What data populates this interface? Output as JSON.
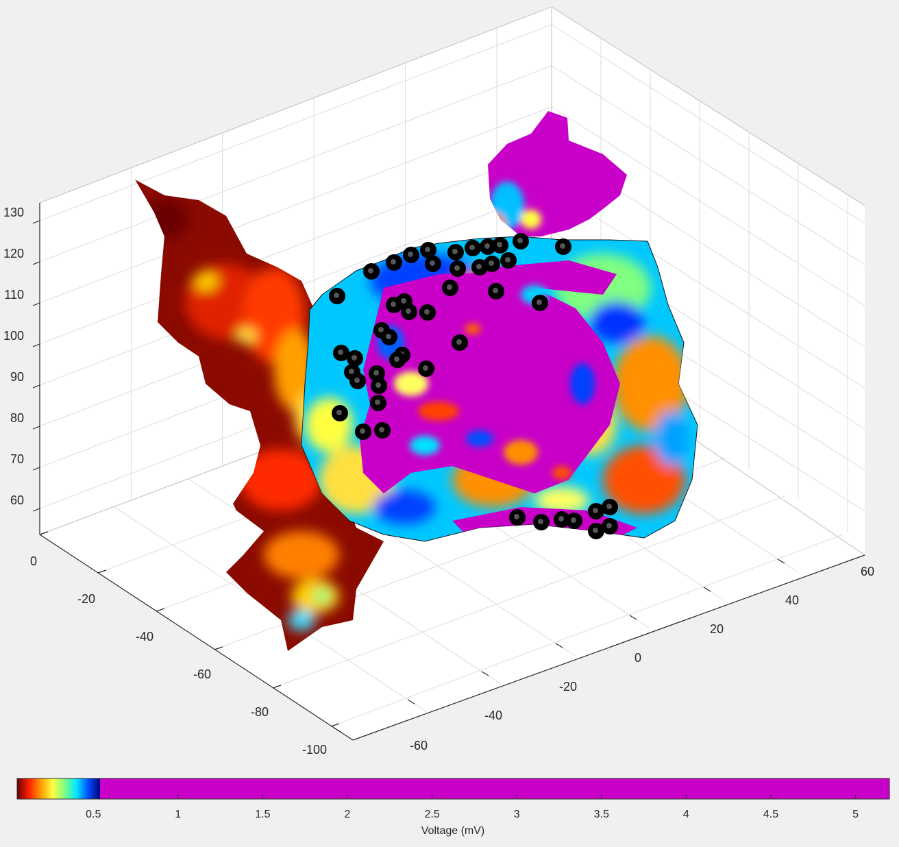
{
  "chart_data": {
    "type": "3d-surface",
    "z_axis": {
      "ticks": [
        60,
        70,
        80,
        90,
        100,
        110,
        120,
        130
      ]
    },
    "y_axis": {
      "ticks": [
        0,
        -20,
        -40,
        -60,
        -80,
        -100
      ]
    },
    "x_axis": {
      "ticks": [
        -60,
        -40,
        -20,
        0,
        20,
        40,
        60
      ]
    },
    "colorbar": {
      "label": "Voltage (mV)",
      "ticks": [
        0.5,
        1,
        1.5,
        2,
        2.5,
        3,
        3.5,
        4,
        4.5,
        5
      ],
      "range": [
        0.05,
        5.2
      ],
      "gradient_stops": [
        "#6b0000",
        "#ff2000",
        "#ff9a00",
        "#ffff40",
        "#80ff80",
        "#00e8ff",
        "#0050ff",
        "#000080"
      ],
      "saturated_color": "#c800c8"
    },
    "grid": true,
    "point_marker_color": "#000000"
  }
}
